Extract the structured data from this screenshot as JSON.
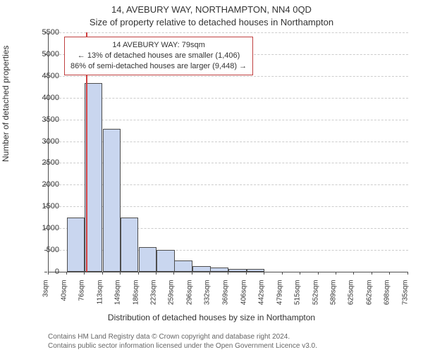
{
  "chart": {
    "type": "histogram",
    "title_main": "14, AVEBURY WAY, NORTHAMPTON, NN4 0QD",
    "title_sub": "Size of property relative to detached houses in Northampton",
    "y_axis_label": "Number of detached properties",
    "x_axis_title": "Distribution of detached houses by size in Northampton",
    "title_fontsize": 13,
    "label_fontsize": 12,
    "tick_fontsize": 11,
    "x_tick_fontsize": 10,
    "background_color": "#ffffff",
    "grid_color": "#cccccc",
    "axis_color": "#4d4d4d",
    "bar_fill": "#c9d6ef",
    "bar_border": "#4d4d4d",
    "marker_color": "#d04040",
    "ylim": [
      0,
      5500
    ],
    "ytick_step": 500,
    "y_ticks": [
      0,
      500,
      1000,
      1500,
      2000,
      2500,
      3000,
      3500,
      4000,
      4500,
      5000,
      5500
    ],
    "x_ticks": [
      "3sqm",
      "40sqm",
      "76sqm",
      "113sqm",
      "149sqm",
      "186sqm",
      "223sqm",
      "259sqm",
      "296sqm",
      "332sqm",
      "369sqm",
      "406sqm",
      "442sqm",
      "479sqm",
      "515sqm",
      "552sqm",
      "589sqm",
      "625sqm",
      "662sqm",
      "698sqm",
      "735sqm"
    ],
    "x_range": [
      3,
      735
    ],
    "bar_width_sqm": 36.6,
    "bars": [
      {
        "x": 3,
        "count": 0
      },
      {
        "x": 40,
        "count": 1250
      },
      {
        "x": 76,
        "count": 4330
      },
      {
        "x": 113,
        "count": 3280
      },
      {
        "x": 149,
        "count": 1250
      },
      {
        "x": 186,
        "count": 570
      },
      {
        "x": 223,
        "count": 500
      },
      {
        "x": 259,
        "count": 260
      },
      {
        "x": 296,
        "count": 130
      },
      {
        "x": 332,
        "count": 100
      },
      {
        "x": 369,
        "count": 60
      },
      {
        "x": 406,
        "count": 60
      },
      {
        "x": 442,
        "count": 0
      },
      {
        "x": 479,
        "count": 0
      },
      {
        "x": 515,
        "count": 0
      },
      {
        "x": 552,
        "count": 0
      },
      {
        "x": 589,
        "count": 0
      },
      {
        "x": 625,
        "count": 0
      },
      {
        "x": 662,
        "count": 0
      },
      {
        "x": 698,
        "count": 0
      }
    ],
    "marker_at_sqm": 79,
    "annotation": {
      "line1": "14 AVEBURY WAY: 79sqm",
      "line2": "← 13% of detached houses are smaller (1,406)",
      "line3": "86% of semi-detached houses are larger (9,448) →",
      "border_color": "#c04040",
      "fontsize": 11
    },
    "attribution": {
      "line1": "Contains HM Land Registry data © Crown copyright and database right 2024.",
      "line2": "Contains public sector information licensed under the Open Government Licence v3.0.",
      "color": "#666666",
      "fontsize": 10
    }
  }
}
